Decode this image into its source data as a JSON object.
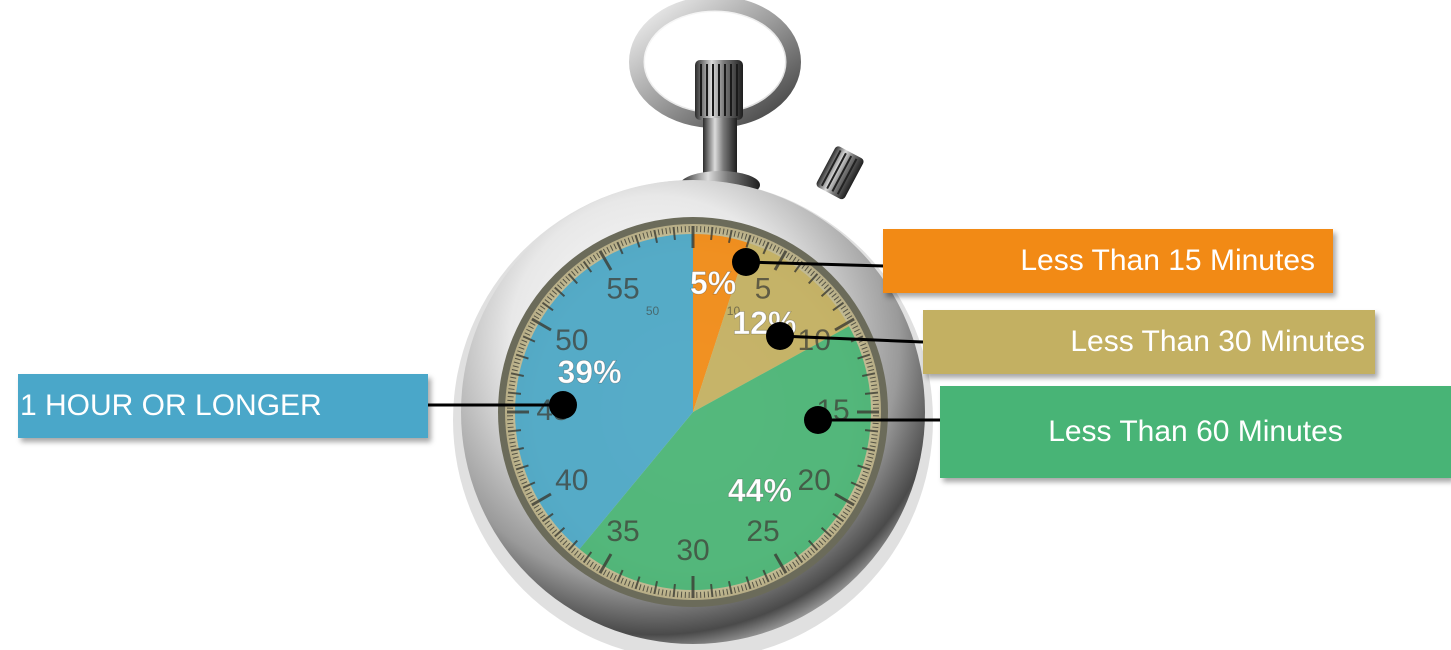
{
  "chart_data": {
    "type": "pie",
    "slices": [
      {
        "label": "Less Than 15 Minutes",
        "value": 5,
        "display": "5%",
        "color": "#f28a15"
      },
      {
        "label": "Less Than 30 Minutes",
        "value": 12,
        "display": "12%",
        "color": "#c3b062"
      },
      {
        "label": "Less Than 60 Minutes",
        "value": 44,
        "display": "44%",
        "color": "#48b476"
      },
      {
        "label": "1 HOUR OR LONGER",
        "value": 39,
        "display": "39%",
        "color": "#4aa7c9"
      }
    ],
    "start_angle_deg": 0,
    "direction": "clockwise",
    "style": "stopwatch-dial"
  },
  "dial": {
    "major_labels": [
      "5",
      "10",
      "15",
      "20",
      "25",
      "30",
      "35",
      "40",
      "45",
      "50",
      "55"
    ],
    "inner_labels": [
      "50",
      "10"
    ]
  }
}
